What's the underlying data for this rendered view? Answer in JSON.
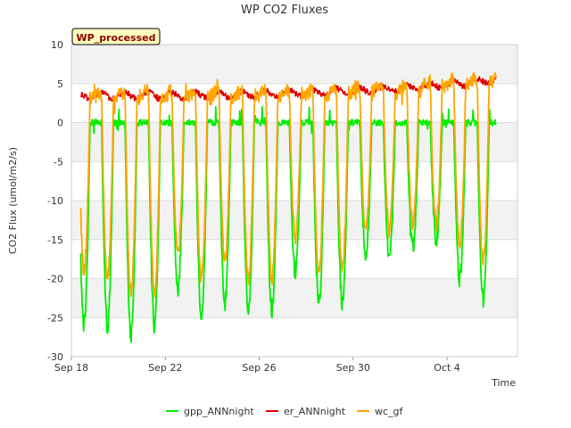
{
  "chart_data": {
    "type": "line",
    "title": "WP CO2 Fluxes",
    "badge": "WP_processed",
    "xlabel": "Time",
    "ylabel": "CO2 Flux (umol/m2/s)",
    "ylim": [
      -30,
      10
    ],
    "xlim_days": [
      0,
      19
    ],
    "yticks": [
      10,
      5,
      0,
      -5,
      -10,
      -15,
      -20,
      -25,
      -30
    ],
    "xticks": [
      {
        "day": 0,
        "label": "Sep 18"
      },
      {
        "day": 4,
        "label": "Sep 22"
      },
      {
        "day": 8,
        "label": "Sep 26"
      },
      {
        "day": 12,
        "label": "Sep 30"
      },
      {
        "day": 16,
        "label": "Oct 4"
      }
    ],
    "data_range_days": [
      0.4,
      18.1
    ],
    "daily_minima": {
      "days": [
        0,
        1,
        2,
        3,
        4,
        5,
        6,
        7,
        8,
        9,
        10,
        11,
        12,
        13,
        14,
        15,
        16,
        17
      ],
      "gpp_ANNnight": [
        -26,
        -26,
        -27.5,
        -26,
        -21,
        -25,
        -23,
        -24,
        -24,
        -19,
        -23,
        -23,
        -17,
        -17,
        -16,
        -15,
        -20,
        -23
      ],
      "wc_gf": [
        -19,
        -20,
        -22,
        -22,
        -17,
        -20,
        -18,
        -20,
        -20,
        -15,
        -19,
        -19,
        -14,
        -14,
        -13,
        -13,
        -16,
        -18
      ]
    },
    "series": [
      {
        "name": "gpp_ANNnight",
        "color": "#00ee00",
        "night_level": 0
      },
      {
        "name": "er_ANNnight",
        "color": "#dd0000",
        "level_start": 3.5,
        "level_end": 5.5
      },
      {
        "name": "wc_gf",
        "color": "#ffa500"
      }
    ]
  }
}
